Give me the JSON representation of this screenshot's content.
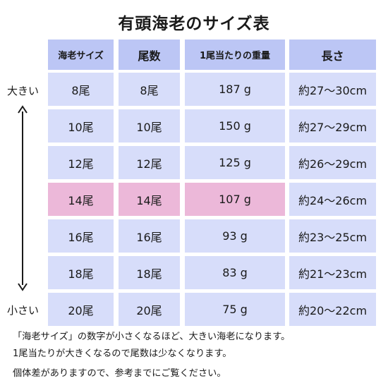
{
  "title": "有頭海老のサイズ表",
  "columns": [
    "海老サイズ",
    "尾数",
    "1尾当たりの重量",
    "長さ"
  ],
  "rows": [
    {
      "size": "8尾",
      "count": "8尾",
      "weight": "187 g",
      "length": "約27〜30cm",
      "highlight": false
    },
    {
      "size": "10尾",
      "count": "10尾",
      "weight": "150 g",
      "length": "約27〜29cm",
      "highlight": false
    },
    {
      "size": "12尾",
      "count": "12尾",
      "weight": "125 g",
      "length": "約26〜29cm",
      "highlight": false
    },
    {
      "size": "14尾",
      "count": "14尾",
      "weight": "107 g",
      "length": "約24〜26cm",
      "highlight": true
    },
    {
      "size": "16尾",
      "count": "16尾",
      "weight": "93 g",
      "length": "約23〜25cm",
      "highlight": false
    },
    {
      "size": "18尾",
      "count": "18尾",
      "weight": "83 g",
      "length": "約21〜23cm",
      "highlight": false
    },
    {
      "size": "20尾",
      "count": "20尾",
      "weight": "75 g",
      "length": "約20〜22cm",
      "highlight": false
    }
  ],
  "side_labels": {
    "top": "大きい",
    "bottom": "小さい"
  },
  "notes": [
    "「海老サイズ」の数字が小さくなるほど、大きい海老になります。",
    "1尾当たりが大きくなるので尾数は少なくなります。",
    "個体差がありますので、参考までにご覧ください。"
  ],
  "colors": {
    "header": "#bcc6f5",
    "row": "#d7ddfa",
    "highlight": "#ecb8d9"
  }
}
